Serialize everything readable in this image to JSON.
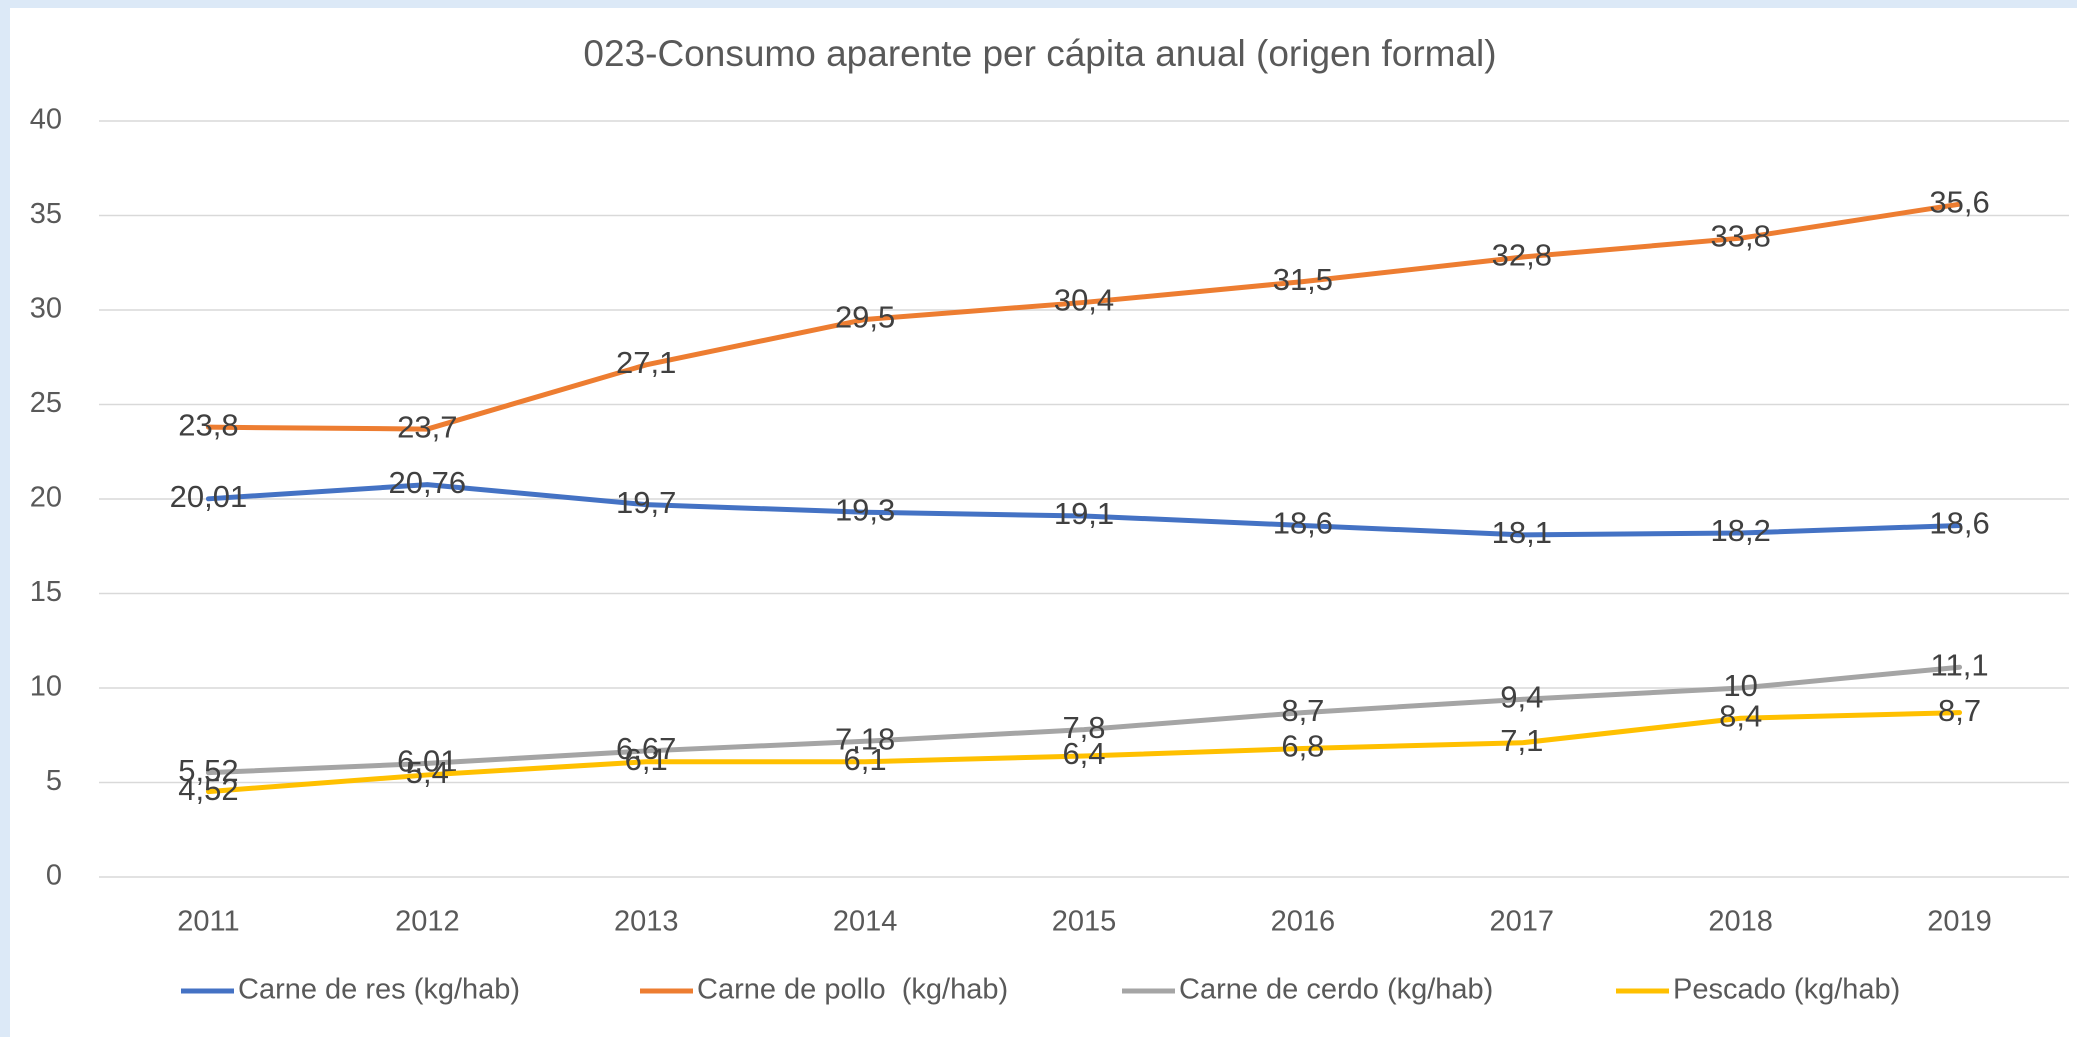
{
  "chart_data": {
    "type": "line",
    "title": "023-Consumo aparente per cápita anual (origen formal)",
    "categories": [
      "2011",
      "2012",
      "2013",
      "2014",
      "2015",
      "2016",
      "2017",
      "2018",
      "2019"
    ],
    "ylim": [
      0,
      40
    ],
    "yticks": [
      0,
      5,
      10,
      15,
      20,
      25,
      30,
      35,
      40
    ],
    "grid": true,
    "legend": "bottom",
    "series": [
      {
        "name": "Carne de res (kg/hab)",
        "color": "#4472c4",
        "values": [
          20.01,
          20.76,
          19.7,
          19.3,
          19.1,
          18.6,
          18.1,
          18.2,
          18.6
        ],
        "value_labels": [
          "20,01",
          "20,76",
          "19,7",
          "19,3",
          "19,1",
          "18,6",
          "18,1",
          "18,2",
          "18,6"
        ]
      },
      {
        "name": "Carne de pollo  (kg/hab)",
        "color": "#ed7d31",
        "values": [
          23.8,
          23.7,
          27.1,
          29.5,
          30.4,
          31.5,
          32.8,
          33.8,
          35.6
        ],
        "value_labels": [
          "23,8",
          "23,7",
          "27,1",
          "29,5",
          "30,4",
          "31,5",
          "32,8",
          "33,8",
          "35,6"
        ]
      },
      {
        "name": "Carne de cerdo (kg/hab)",
        "color": "#a5a5a5",
        "values": [
          5.52,
          6.01,
          6.67,
          7.18,
          7.8,
          8.7,
          9.4,
          10,
          11.1
        ],
        "value_labels": [
          "5,52",
          "6,01",
          "6,67",
          "7,18",
          "7,8",
          "8,7",
          "9,4",
          "10",
          "11,1"
        ]
      },
      {
        "name": "Pescado (kg/hab)",
        "color": "#ffc000",
        "values": [
          4.52,
          5.4,
          6.1,
          6.1,
          6.4,
          6.8,
          7.1,
          8.4,
          8.7
        ],
        "value_labels": [
          "4,52",
          "5,4",
          "6,1",
          "6,1",
          "6,4",
          "6,8",
          "7,1",
          "8,4",
          "8,7"
        ]
      }
    ]
  }
}
